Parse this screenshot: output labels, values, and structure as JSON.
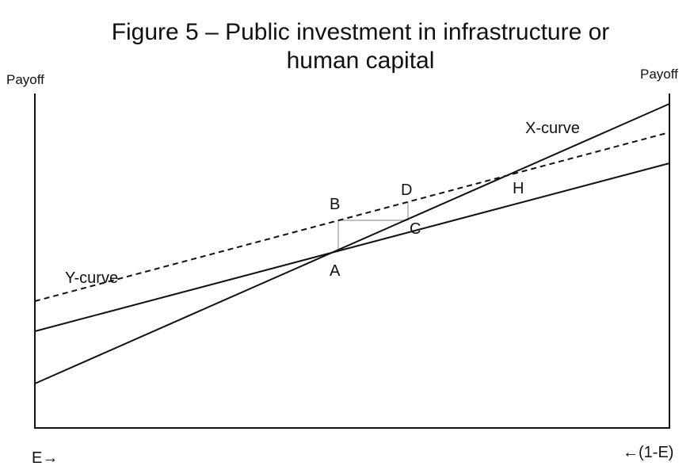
{
  "title": [
    "Figure 5 – Public investment in infrastructure or",
    "human capital"
  ],
  "axes": {
    "left_label": "Payoff",
    "right_label": "Payoff",
    "bottom_left": "E→",
    "bottom_right": "←(1-E)"
  },
  "curves": {
    "x_curve": "X-curve",
    "y_curve": "Y-curve"
  },
  "points": {
    "a": "A",
    "b": "B",
    "c": "C",
    "d": "D",
    "h": "H"
  }
}
